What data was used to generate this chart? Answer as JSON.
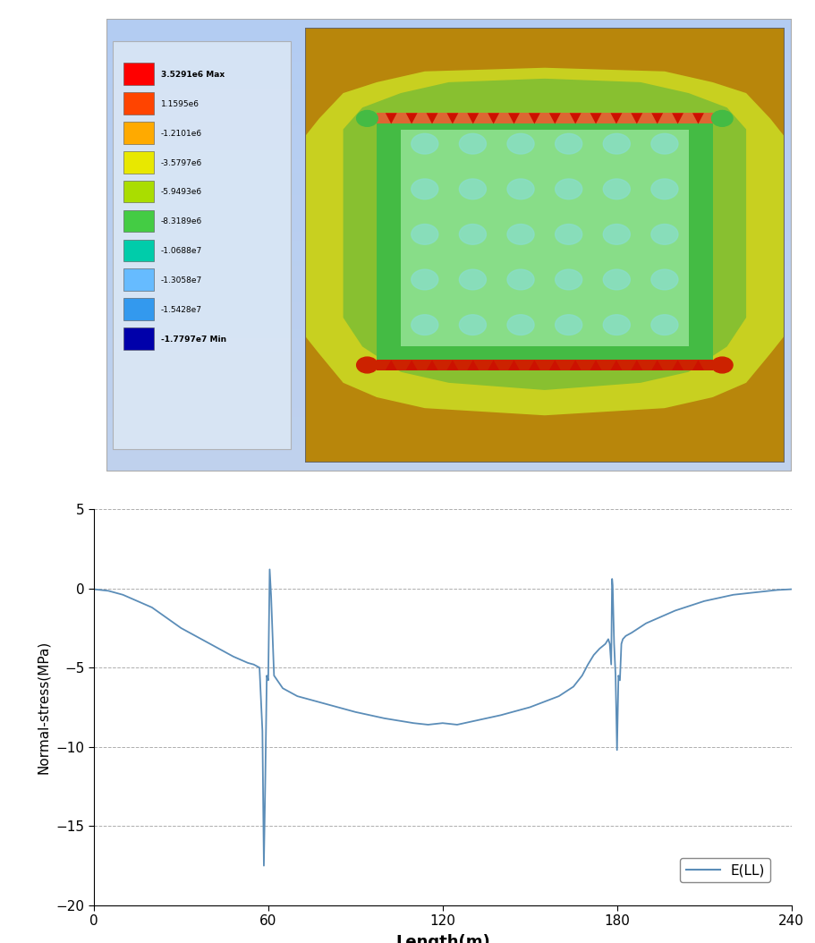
{
  "legend_labels": [
    "3.5291e6 Max",
    "1.1595e6",
    "-1.2101e6",
    "-3.5797e6",
    "-5.9493e6",
    "-8.3189e6",
    "-1.0688e7",
    "-1.3058e7",
    "-1.5428e7",
    "-1.7797e7 Min"
  ],
  "legend_colors": [
    "#ff0000",
    "#ff4400",
    "#ffaa00",
    "#e8e800",
    "#aadd00",
    "#44cc44",
    "#00ccaa",
    "#66bbff",
    "#3399ee",
    "#0000aa"
  ],
  "line_color": "#5b8db8",
  "ylabel": "Normal-stress(MPa)",
  "xlabel": "Length(m)",
  "legend_label": "E(LL)",
  "ylim": [
    -20,
    5
  ],
  "xlim": [
    0,
    240
  ],
  "yticks": [
    -20,
    -15,
    -10,
    -5,
    0,
    5
  ],
  "xticks": [
    0,
    60,
    120,
    180,
    240
  ],
  "contour_brown": "#b8860b",
  "contour_yellow_green": "#c8d020",
  "contour_green_outer": "#88c030",
  "contour_green_inner": "#44bb44",
  "contour_light_green": "#88dd88",
  "contour_cyan": "#88ddcc",
  "beam_orange": "#dd6633",
  "beam_red": "#cc2200",
  "triangle_red": "#cc1100",
  "bg_blue_light": "#ccd8ec",
  "bg_blue_mid": "#b8ccdf"
}
